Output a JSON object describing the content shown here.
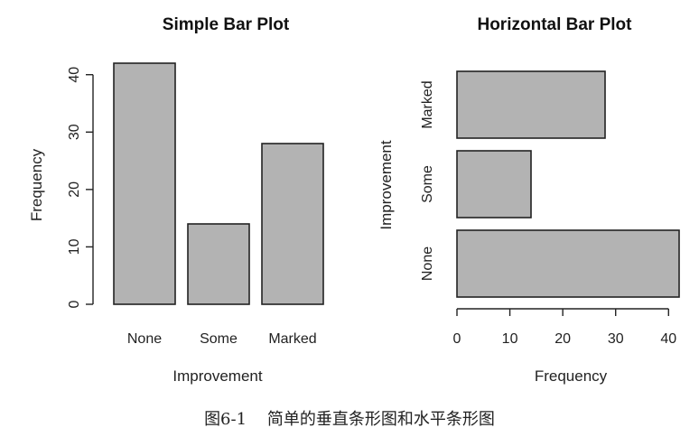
{
  "figure": {
    "caption": "图6-1    简单的垂直条形图和水平条形图"
  },
  "colors": {
    "bar_fill": "#b3b3b3",
    "bar_stroke": "#222222"
  },
  "chart_data": [
    {
      "type": "bar",
      "orientation": "vertical",
      "title": "Simple Bar Plot",
      "xlabel": "Improvement",
      "ylabel": "Frequency",
      "categories": [
        "None",
        "Some",
        "Marked"
      ],
      "values": [
        42,
        14,
        28
      ],
      "ylim": [
        0,
        42
      ],
      "yticks": [
        0,
        10,
        20,
        30,
        40
      ],
      "grid": false
    },
    {
      "type": "bar",
      "orientation": "horizontal",
      "title": "Horizontal Bar Plot",
      "xlabel": "Frequency",
      "ylabel": "Improvement",
      "categories": [
        "None",
        "Some",
        "Marked"
      ],
      "values": [
        42,
        14,
        28
      ],
      "xlim": [
        0,
        42
      ],
      "xticks": [
        0,
        10,
        20,
        30,
        40
      ],
      "grid": false
    }
  ]
}
